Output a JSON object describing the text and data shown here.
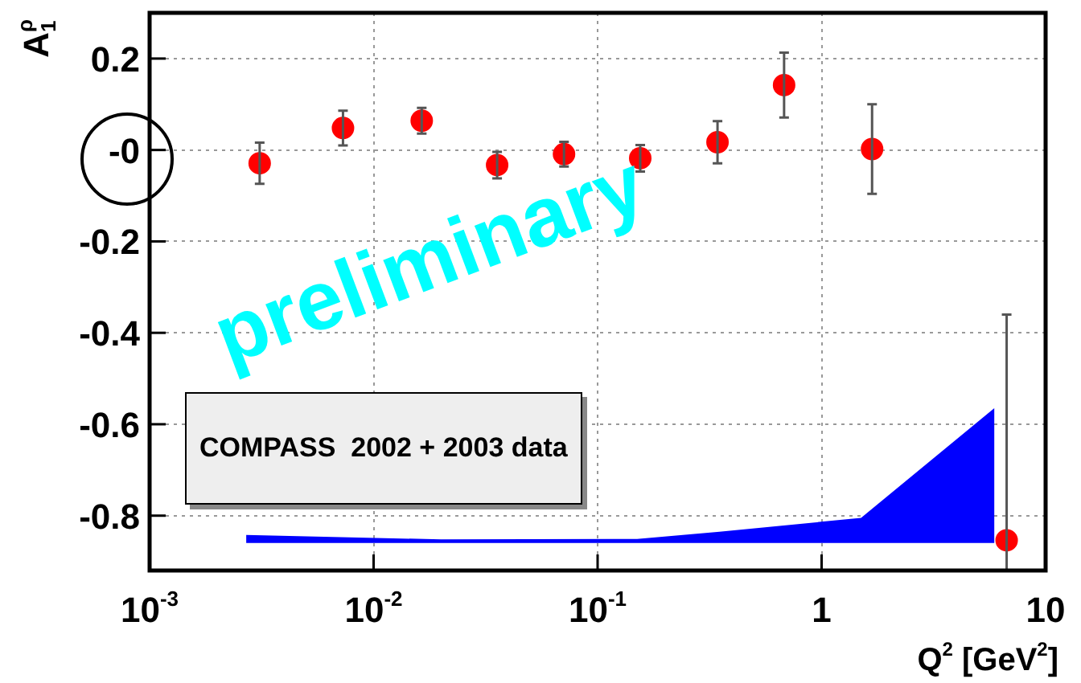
{
  "chart_data": {
    "type": "scatter",
    "xlabel": "Q$^{2}$ [GeV$^{2}$]",
    "ylabel": "A$_{1}$$^{ρ}$",
    "log": "x",
    "grid": true,
    "xlim": [
      0.001,
      10
    ],
    "ylim": [
      -0.92,
      0.3
    ],
    "xticks": [
      {
        "value": 0.001,
        "label": "10$^{-3}$"
      },
      {
        "value": 0.01,
        "label": "10$^{-2}$"
      },
      {
        "value": 0.1,
        "label": "10$^{-1}$"
      },
      1,
      10
    ],
    "yticks": [
      0.2,
      {
        "value": 0,
        "label": "-0"
      },
      -0.2,
      -0.4,
      -0.6,
      -0.8
    ],
    "series": [
      {
        "type": "scatter",
        "marker": "circle",
        "color": "#ff0000",
        "x": [
          0.0031,
          0.0073,
          0.0164,
          0.0356,
          0.0708,
          0.155,
          0.343,
          0.68,
          1.68,
          6.7
        ],
        "values": [
          -0.029,
          0.048,
          0.064,
          -0.033,
          -0.009,
          -0.018,
          0.017,
          0.142,
          0.002,
          -0.854
        ],
        "errors": [
          0.045,
          0.038,
          0.028,
          0.029,
          0.027,
          0.029,
          0.046,
          0.071,
          0.098,
          [
            -0.92,
            -0.36
          ]
        ]
      },
      {
        "type": "area",
        "color": "#0000ff",
        "x": [
          0.0027,
          0.02,
          0.15,
          0.35,
          1.5,
          5.9,
          5.9,
          0.0027
        ],
        "values": [
          -0.842,
          -0.852,
          -0.851,
          -0.835,
          -0.805,
          -0.565,
          -0.86,
          -0.86
        ]
      }
    ],
    "annotations": [
      "preliminary",
      "COMPASS  2002 + 2003 data"
    ]
  }
}
